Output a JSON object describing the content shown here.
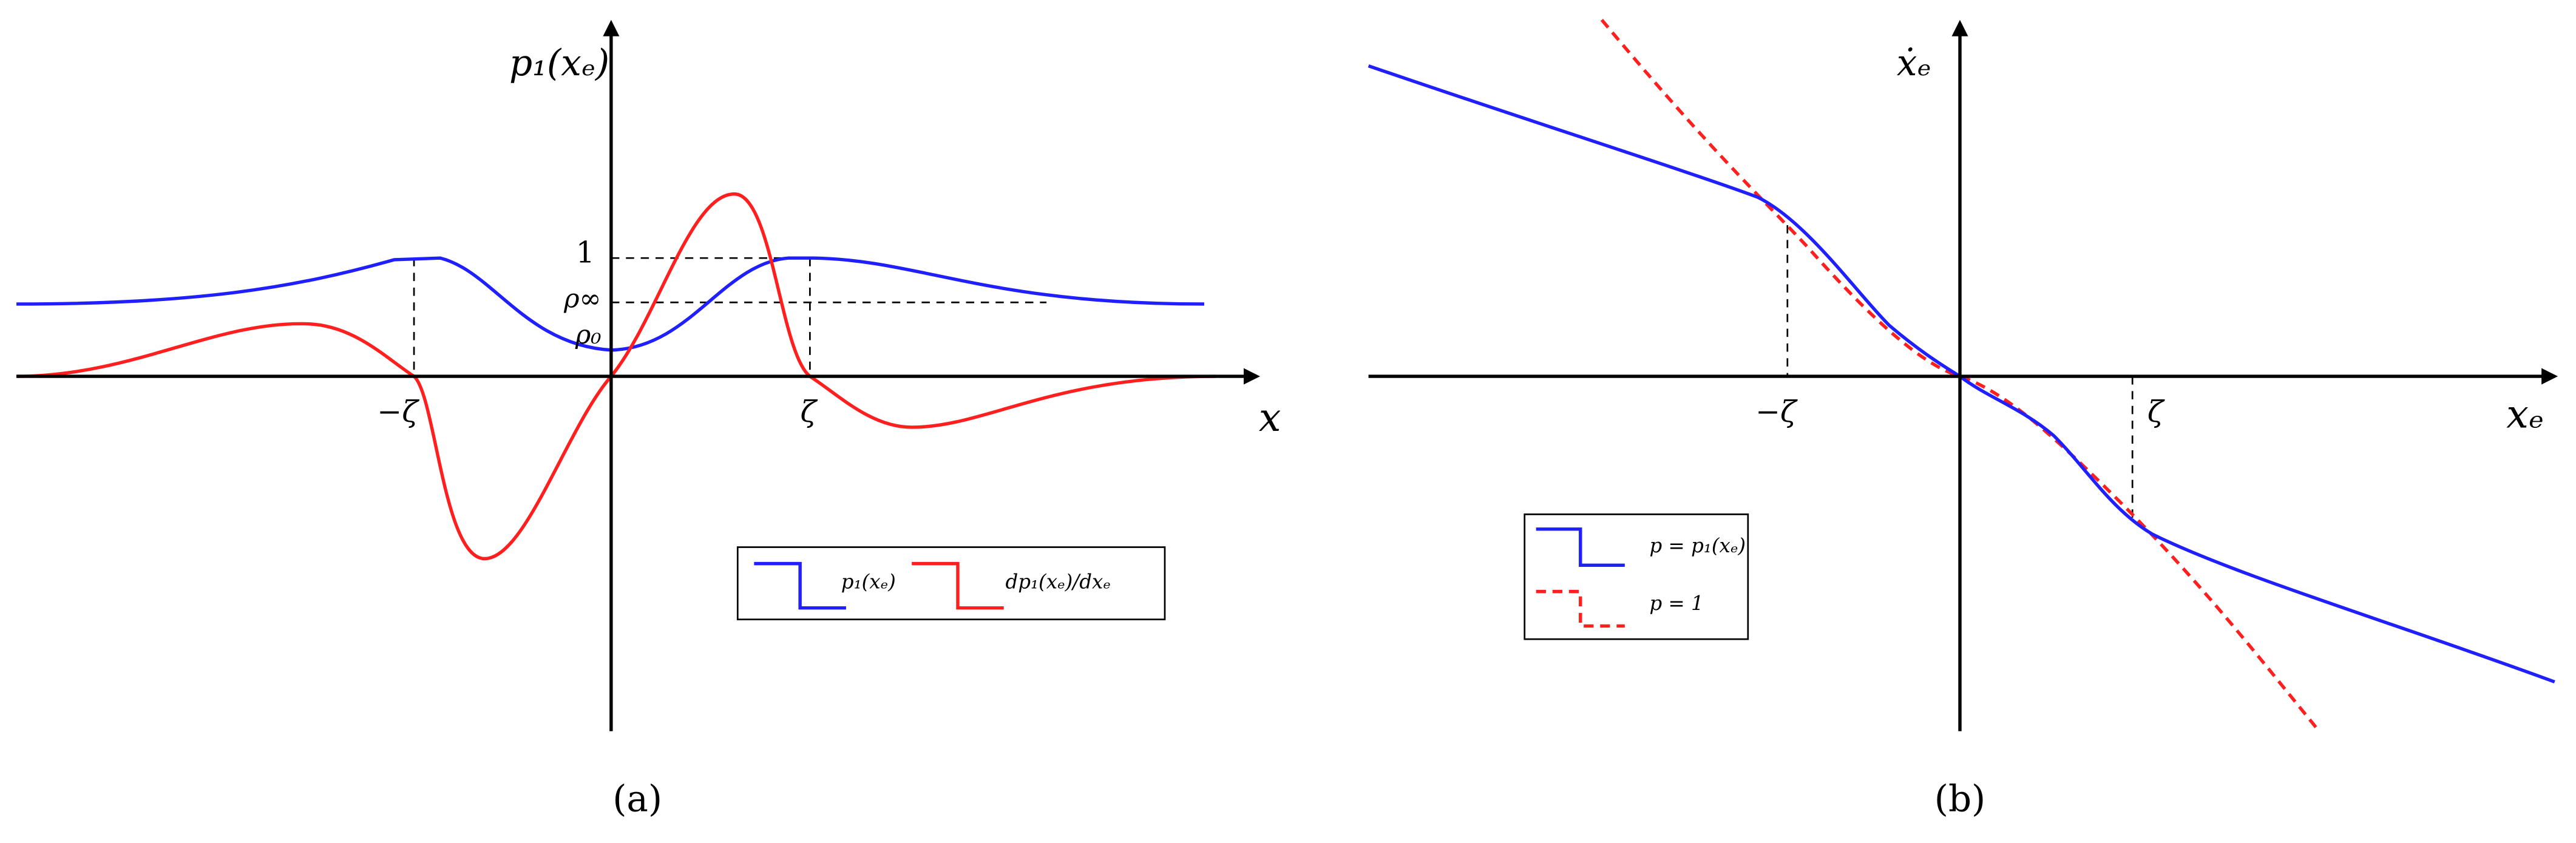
{
  "panel_a": {
    "y_axis_label": "p₁(xₑ)",
    "x_axis_label": "x",
    "level_one": "1",
    "level_inf": "ρ∞",
    "level_zero": "ρ₀",
    "neg_zeta": "−ζ",
    "pos_zeta": "ζ",
    "legend": [
      "p₁(xₑ)",
      "dp₁(xₑ)/dxₑ"
    ],
    "caption": "(a)"
  },
  "panel_b": {
    "y_axis_label": "ẋₑ",
    "x_axis_label": "xₑ",
    "neg_zeta": "−ζ",
    "pos_zeta": "ζ",
    "legend": [
      "p = p₁(xₑ)",
      "p = 1"
    ],
    "caption": "(b)"
  }
}
